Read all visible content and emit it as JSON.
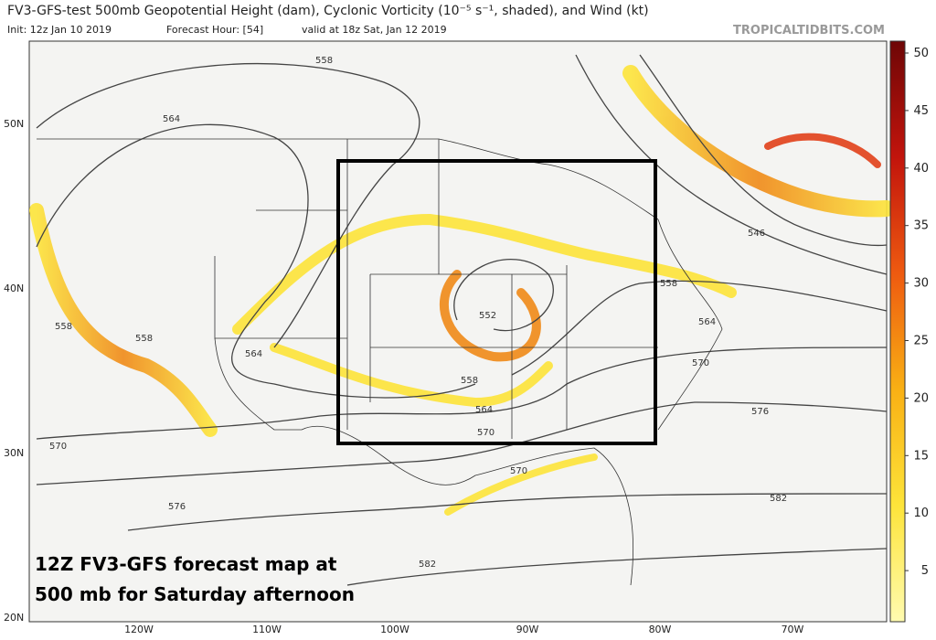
{
  "header": {
    "title": "FV3-GFS-test 500mb Geopotential Height (dam), Cyclonic Vorticity (10⁻⁵ s⁻¹, shaded), and Wind (kt)",
    "init": "Init: 12z Jan 10 2019",
    "forecast_hour": "Forecast Hour: [54]",
    "valid": "valid at 18z Sat, Jan 12 2019",
    "site": "TROPICALTIDBITS.COM"
  },
  "colorbar": {
    "ticks": [
      5,
      10,
      15,
      20,
      25,
      30,
      35,
      40,
      45,
      50
    ]
  },
  "latitudes": [
    "50N",
    "40N",
    "30N",
    "20N"
  ],
  "longitudes": [
    "120W",
    "110W",
    "100W",
    "90W",
    "80W",
    "70W"
  ],
  "contour_labels": [
    "558",
    "564",
    "546",
    "558",
    "552",
    "564",
    "558",
    "558",
    "564",
    "570",
    "558",
    "564",
    "570",
    "576",
    "570",
    "570",
    "582",
    "576",
    "582"
  ],
  "caption": [
    "12Z FV3-GFS forecast map at",
    "500 mb for Saturday afternoon"
  ]
}
